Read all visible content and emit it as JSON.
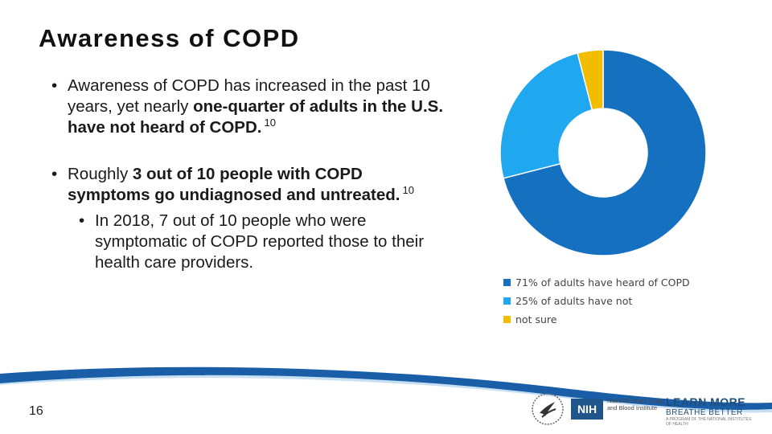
{
  "slide": {
    "title": "Awareness of COPD",
    "page_number": "16",
    "bullets": {
      "b1": {
        "t1": "Awareness of COPD has increased in the past 10 years, yet nearly ",
        "t2": "one-quarter of adults in the U.S. have not heard of COPD.",
        "ref": "10"
      },
      "b2": {
        "t1": "Roughly ",
        "t2": "3 out of 10 people with COPD symptoms go undiagnosed and untreated.",
        "ref": "10"
      },
      "b3": "In 2018, 7 out of 10 people who were symptomatic of COPD reported those to their health care providers."
    },
    "logos": {
      "nih": "NIH",
      "nhlbi": "National Heart, Lung, and Blood Institute",
      "lmbb_line1": "LEARN MORE",
      "lmbb_line2": "BREATHE BETTER",
      "lmbb_line3": "A PROGRAM OF THE NATIONAL INSTITUTES OF HEALTH"
    }
  },
  "chart_data": {
    "type": "pie",
    "donut": true,
    "categories": [
      "71% of adults have heard of COPD",
      "25% of adults have not",
      "not sure"
    ],
    "values": [
      71,
      25,
      4
    ],
    "colors": [
      "#1570c0",
      "#1fa8f0",
      "#f2bc00"
    ],
    "legend_position": "bottom"
  },
  "colors": {
    "wave_blue": "#1a5ea8",
    "wave_light": "#c7dff2"
  }
}
